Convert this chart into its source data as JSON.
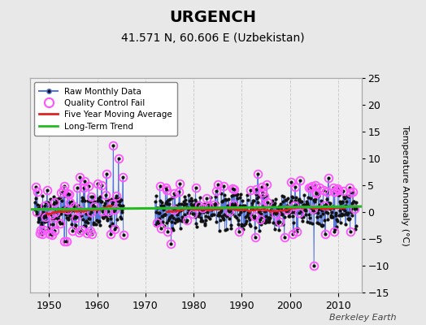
{
  "title": "URGENCH",
  "subtitle": "41.571 N, 60.606 E (Uzbekistan)",
  "ylabel_right": "Temperature Anomaly (°C)",
  "xlim": [
    1946,
    2015
  ],
  "ylim": [
    -15,
    25
  ],
  "yticks": [
    -15,
    -10,
    -5,
    0,
    5,
    10,
    15,
    20,
    25
  ],
  "xticks": [
    1950,
    1960,
    1970,
    1980,
    1990,
    2000,
    2010
  ],
  "fig_bg_color": "#e8e8e8",
  "plot_bg_color": "#f0f0f0",
  "grid_color": "#cccccc",
  "blue_color": "#5577dd",
  "red_color": "#dd2222",
  "green_color": "#22bb22",
  "magenta_color": "#ff55ff",
  "black_dot_color": "#111111",
  "watermark": "Berkeley Earth",
  "legend_items": [
    "Raw Monthly Data",
    "Quality Control Fail",
    "Five Year Moving Average",
    "Long-Term Trend"
  ],
  "seed": 42,
  "title_fontsize": 14,
  "subtitle_fontsize": 10,
  "tick_fontsize": 9,
  "label_fontsize": 8
}
